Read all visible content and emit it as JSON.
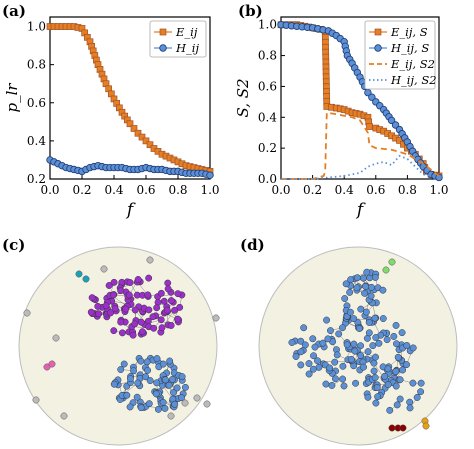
{
  "panels": {
    "a": {
      "label": "(a)",
      "xlabel": "f",
      "ylabel": "p_lr",
      "xticks": [
        "0.0",
        "0.2",
        "0.4",
        "0.6",
        "0.8",
        "1.0"
      ],
      "yticks": [
        "0.2",
        "0.4",
        "0.6",
        "0.8",
        "1.0"
      ]
    },
    "b": {
      "label": "(b)",
      "xlabel": "f",
      "ylabel": "S, S2",
      "xticks": [
        "0.0",
        "0.2",
        "0.4",
        "0.6",
        "0.8",
        "1.0"
      ],
      "yticks": [
        "0.0",
        "0.2",
        "0.4",
        "0.6",
        "0.8",
        "1.0"
      ]
    },
    "c": {
      "label": "(c)"
    },
    "d": {
      "label": "(d)"
    }
  },
  "colors": {
    "orange": "#e67e22",
    "orange_dark": "#a0522d",
    "blue": "#5b8fd6",
    "blue_dark": "#1f3b73",
    "purple": "#9b2fc9",
    "disk": "#f3f1e2"
  },
  "chart_data": [
    {
      "type": "line",
      "panel": "a",
      "xlim": [
        0,
        1
      ],
      "ylim": [
        0.2,
        1.05
      ],
      "series": [
        {
          "name": "E_ij",
          "marker": "square",
          "x": [
            0.0,
            0.05,
            0.1,
            0.15,
            0.2,
            0.25,
            0.3,
            0.35,
            0.4,
            0.45,
            0.5,
            0.55,
            0.6,
            0.65,
            0.7,
            0.75,
            0.8,
            0.85,
            0.9,
            0.95,
            1.0
          ],
          "values": [
            1.0,
            1.0,
            1.0,
            1.0,
            0.99,
            0.92,
            0.8,
            0.7,
            0.62,
            0.55,
            0.49,
            0.44,
            0.4,
            0.36,
            0.33,
            0.31,
            0.29,
            0.27,
            0.26,
            0.25,
            0.24
          ]
        },
        {
          "name": "H_ij",
          "marker": "circle",
          "x": [
            0.0,
            0.05,
            0.1,
            0.15,
            0.2,
            0.25,
            0.3,
            0.35,
            0.4,
            0.45,
            0.5,
            0.55,
            0.6,
            0.65,
            0.7,
            0.75,
            0.8,
            0.85,
            0.9,
            0.95,
            1.0
          ],
          "values": [
            0.3,
            0.28,
            0.26,
            0.25,
            0.24,
            0.26,
            0.27,
            0.26,
            0.26,
            0.26,
            0.25,
            0.25,
            0.26,
            0.25,
            0.25,
            0.24,
            0.24,
            0.23,
            0.23,
            0.23,
            0.22
          ]
        }
      ]
    },
    {
      "type": "line",
      "panel": "b",
      "xlim": [
        0,
        1
      ],
      "ylim": [
        0,
        1.05
      ],
      "series": [
        {
          "name": "E_ij, S",
          "marker": "square",
          "x": [
            0.0,
            0.05,
            0.1,
            0.15,
            0.2,
            0.25,
            0.28,
            0.29,
            0.35,
            0.4,
            0.45,
            0.5,
            0.55,
            0.56,
            0.6,
            0.65,
            0.7,
            0.75,
            0.8,
            0.85,
            0.9,
            0.92,
            0.95,
            1.0
          ],
          "values": [
            1.0,
            1.0,
            1.0,
            0.99,
            0.98,
            0.97,
            0.95,
            0.47,
            0.46,
            0.45,
            0.43,
            0.42,
            0.4,
            0.34,
            0.33,
            0.31,
            0.28,
            0.25,
            0.2,
            0.16,
            0.1,
            0.05,
            0.03,
            0.02
          ]
        },
        {
          "name": "H_ij, S",
          "marker": "circle",
          "x": [
            0.0,
            0.1,
            0.2,
            0.3,
            0.35,
            0.4,
            0.42,
            0.45,
            0.5,
            0.53,
            0.55,
            0.6,
            0.65,
            0.7,
            0.75,
            0.8,
            0.85,
            0.9,
            0.95,
            1.0
          ],
          "values": [
            1.0,
            0.99,
            0.98,
            0.96,
            0.93,
            0.89,
            0.8,
            0.75,
            0.66,
            0.6,
            0.56,
            0.5,
            0.45,
            0.38,
            0.32,
            0.24,
            0.15,
            0.08,
            0.03,
            0.01
          ]
        },
        {
          "name": "E_ij, S2",
          "style": "dashed",
          "x": [
            0.0,
            0.1,
            0.2,
            0.27,
            0.28,
            0.29,
            0.35,
            0.45,
            0.5,
            0.55,
            0.56,
            0.6,
            0.7,
            0.8,
            0.9,
            1.0
          ],
          "values": [
            0.0,
            0.0,
            0.0,
            0.02,
            0.05,
            0.43,
            0.42,
            0.4,
            0.38,
            0.3,
            0.22,
            0.2,
            0.19,
            0.16,
            0.1,
            0.02
          ]
        },
        {
          "name": "H_ij, S2",
          "style": "dotted",
          "x": [
            0.0,
            0.2,
            0.3,
            0.4,
            0.45,
            0.5,
            0.55,
            0.6,
            0.65,
            0.7,
            0.75,
            0.8,
            0.85,
            0.9,
            1.0
          ],
          "values": [
            0.0,
            0.0,
            0.01,
            0.02,
            0.03,
            0.04,
            0.08,
            0.1,
            0.11,
            0.09,
            0.15,
            0.13,
            0.08,
            0.03,
            0.01
          ]
        }
      ]
    }
  ]
}
